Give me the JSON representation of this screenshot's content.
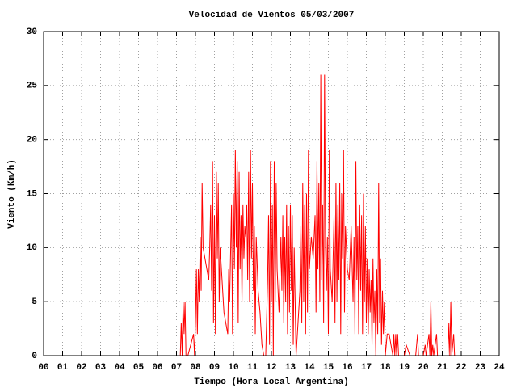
{
  "chart_data": {
    "type": "line",
    "title": "Velocidad de Vientos 05/03/2007",
    "x_label": "Tiempo (Hora Local Argentina)",
    "y_label": "Viento (Km/h)",
    "color": "#ff0000",
    "grid": true,
    "xlim": [
      0,
      24
    ],
    "ylim": [
      0,
      30
    ],
    "xticks": [
      {
        "value": 0,
        "label": "00"
      },
      {
        "value": 1,
        "label": "01"
      },
      {
        "value": 2,
        "label": "02"
      },
      {
        "value": 3,
        "label": "03"
      },
      {
        "value": 4,
        "label": "04"
      },
      {
        "value": 5,
        "label": "05"
      },
      {
        "value": 6,
        "label": "06"
      },
      {
        "value": 7,
        "label": "07"
      },
      {
        "value": 8,
        "label": "08"
      },
      {
        "value": 9,
        "label": "09"
      },
      10,
      11,
      12,
      13,
      14,
      15,
      16,
      17,
      18,
      19,
      20,
      21,
      22,
      23,
      24
    ],
    "yticks": [
      0,
      5,
      10,
      15,
      20,
      25,
      30
    ],
    "x": [
      0,
      7.2,
      7.25,
      7.3,
      7.35,
      7.4,
      7.45,
      7.5,
      7.6,
      7.9,
      7.95,
      8.0,
      8.05,
      8.1,
      8.15,
      8.2,
      8.25,
      8.3,
      8.35,
      8.4,
      8.5,
      8.6,
      8.7,
      8.75,
      8.8,
      8.85,
      8.9,
      8.95,
      9.0,
      9.05,
      9.1,
      9.15,
      9.2,
      9.25,
      9.3,
      9.5,
      9.7,
      9.75,
      9.8,
      9.9,
      9.95,
      10.0,
      10.05,
      10.1,
      10.15,
      10.2,
      10.25,
      10.3,
      10.35,
      10.4,
      10.45,
      10.5,
      10.55,
      10.6,
      10.65,
      10.7,
      10.75,
      10.8,
      10.85,
      10.9,
      10.95,
      11.0,
      11.05,
      11.1,
      11.15,
      11.2,
      11.3,
      11.4,
      11.5,
      11.6,
      11.7,
      11.8,
      11.85,
      11.9,
      11.95,
      12.0,
      12.05,
      12.1,
      12.15,
      12.2,
      12.25,
      12.3,
      12.4,
      12.5,
      12.55,
      12.6,
      12.65,
      12.7,
      12.75,
      12.8,
      12.85,
      12.9,
      12.95,
      13.0,
      13.05,
      13.1,
      13.15,
      13.2,
      13.3,
      13.4,
      13.5,
      13.55,
      13.6,
      13.65,
      13.7,
      13.75,
      13.8,
      13.85,
      13.9,
      13.95,
      14.0,
      14.1,
      14.2,
      14.3,
      14.35,
      14.4,
      14.45,
      14.5,
      14.55,
      14.6,
      14.65,
      14.7,
      14.75,
      14.8,
      14.85,
      14.9,
      14.95,
      15.0,
      15.05,
      15.1,
      15.2,
      15.3,
      15.35,
      15.4,
      15.45,
      15.5,
      15.55,
      15.6,
      15.65,
      15.7,
      15.75,
      15.8,
      15.85,
      15.9,
      16.0,
      16.1,
      16.2,
      16.3,
      16.35,
      16.4,
      16.45,
      16.5,
      16.55,
      16.6,
      16.65,
      16.7,
      16.75,
      16.8,
      16.85,
      16.9,
      16.95,
      17.0,
      17.05,
      17.1,
      17.15,
      17.2,
      17.25,
      17.3,
      17.35,
      17.4,
      17.45,
      17.5,
      17.55,
      17.6,
      17.65,
      17.7,
      17.75,
      17.8,
      17.85,
      17.9,
      17.95,
      18.0,
      18.1,
      18.2,
      18.3,
      18.4,
      18.45,
      18.5,
      18.55,
      18.6,
      18.65,
      18.7,
      19.0,
      19.1,
      19.3,
      19.6,
      19.7,
      19.75,
      20.0,
      20.1,
      20.15,
      20.3,
      20.35,
      20.4,
      20.45,
      20.5,
      20.55,
      20.7,
      20.75,
      21.3,
      21.35,
      21.4,
      21.45,
      21.5,
      21.6,
      21.65,
      22.3
    ],
    "values": [
      0,
      0,
      3,
      0,
      5,
      2,
      5,
      0,
      0,
      2,
      0,
      3,
      8,
      2,
      8,
      5,
      11,
      6,
      16,
      10,
      9,
      8,
      7,
      10,
      14,
      6,
      18,
      3,
      13,
      2,
      17,
      9,
      16,
      5,
      10,
      4,
      2,
      8,
      5,
      14,
      2,
      15,
      8,
      19,
      10,
      18,
      3,
      17,
      8,
      13,
      5,
      14,
      9,
      12,
      11,
      14,
      7,
      17,
      5,
      19,
      9,
      16,
      6,
      12,
      2,
      11,
      6,
      4,
      1,
      0,
      0,
      7,
      13,
      1,
      18,
      5,
      14,
      0,
      18,
      5,
      16,
      8,
      4,
      11,
      6,
      13,
      3,
      11,
      5,
      14,
      2,
      12,
      4,
      14,
      6,
      13,
      1,
      10,
      0,
      3,
      6,
      12,
      3,
      16,
      5,
      14,
      2,
      15,
      4,
      19,
      8,
      11,
      9,
      13,
      4,
      18,
      8,
      16,
      5,
      26,
      7,
      14,
      3,
      26,
      10,
      6,
      11,
      2,
      19,
      8,
      5,
      13,
      3,
      16,
      5,
      14,
      7,
      16,
      2,
      15,
      9,
      19,
      4,
      12,
      8,
      7,
      12,
      5,
      11,
      2,
      18,
      7,
      12,
      2,
      14,
      6,
      13,
      2,
      15,
      5,
      12,
      3,
      9,
      2,
      8,
      4,
      7,
      1,
      9,
      3,
      6,
      0,
      8,
      2,
      16,
      3,
      9,
      1,
      6,
      2,
      5,
      0,
      2,
      2,
      1,
      0,
      2,
      0,
      2,
      0,
      2,
      0,
      0,
      1,
      0,
      0,
      2,
      0,
      0,
      1,
      0,
      2,
      0,
      5,
      0,
      1,
      0,
      2,
      0,
      0,
      3,
      0,
      5,
      0,
      2,
      0,
      0
    ]
  }
}
